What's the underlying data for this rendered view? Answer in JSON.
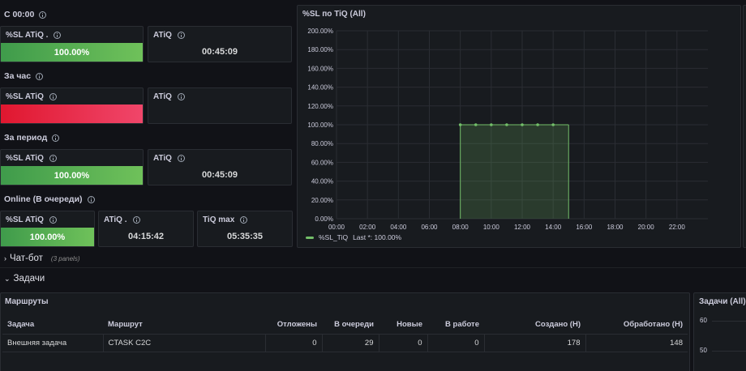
{
  "rows": {
    "since_midnight": "С 00:00",
    "per_hour": "За час",
    "per_period": "За период",
    "online": "Online (В очереди)"
  },
  "stats": {
    "sl_midnight": {
      "title": "%SL ATiQ .",
      "value": "100.00%",
      "level": 1.0,
      "color": "green"
    },
    "atiq_midnight": {
      "title": "ATiQ",
      "value": "00:45:09"
    },
    "sl_hour": {
      "title": "%SL ATiQ",
      "value": "",
      "color": "red"
    },
    "atiq_hour": {
      "title": "ATiQ",
      "value": ""
    },
    "sl_period": {
      "title": "%SL ATiQ",
      "value": "100.00%",
      "level": 1.0,
      "color": "green"
    },
    "atiq_period": {
      "title": "ATiQ",
      "value": "00:45:09"
    },
    "sl_online": {
      "title": "%SL ATiQ",
      "value": "100.00%",
      "level": 1.0,
      "color": "green"
    },
    "atiq_online": {
      "title": "ATiQ .",
      "value": "04:15:42"
    },
    "tiq_max": {
      "title": "TiQ max",
      "value": "05:35:35"
    }
  },
  "chart_title": "%SL по TiQ (All)",
  "chart_data": {
    "type": "area",
    "x": [
      "08:00",
      "09:00",
      "10:00",
      "11:00",
      "12:00",
      "13:00",
      "14:00",
      "15:00"
    ],
    "series": [
      {
        "name": "%SL_TiQ",
        "values": [
          100,
          100,
          100,
          100,
          100,
          100,
          100,
          100
        ]
      }
    ],
    "x_ticks": [
      "00:00",
      "02:00",
      "04:00",
      "06:00",
      "08:00",
      "10:00",
      "12:00",
      "14:00",
      "16:00",
      "18:00",
      "20:00",
      "22:00"
    ],
    "y_ticks": [
      "0.00%",
      "20.00%",
      "40.00%",
      "60.00%",
      "80.00%",
      "100.00%",
      "120.00%",
      "140.00%",
      "160.00%",
      "180.00%",
      "200.00%"
    ],
    "ylim": [
      0,
      200
    ],
    "grid": true,
    "legend_placement": "bottom-left",
    "legend_text": "%SL_TiQ",
    "legend_extra": "Last *: 100.00%",
    "color": "#73bf69"
  },
  "sections": {
    "chatbot": "Чат-бот",
    "chatbot_note": "(3 panels)",
    "tasks": "Задачи"
  },
  "routes": {
    "title": "Маршруты",
    "columns": [
      "Задача",
      "Маршрут",
      "Отложены",
      "В очереди",
      "Новые",
      "В работе",
      "Создано (H)",
      "Обработано (H)"
    ],
    "rows": [
      [
        "Внешняя задача",
        "CTASK C2C",
        "0",
        "29",
        "0",
        "0",
        "178",
        "148"
      ]
    ]
  },
  "tasks_panel": {
    "title": "Задачи (All)",
    "y_ticks": [
      "60",
      "50"
    ]
  }
}
